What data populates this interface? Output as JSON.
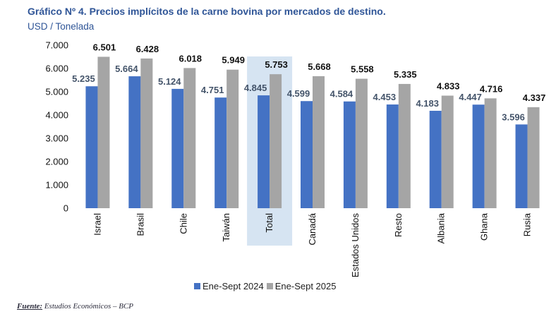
{
  "title": "Gráfico Nº 4. Precios implícitos de la carne bovina por mercados de destino.",
  "subtitle": "USD / Tonelada",
  "source": {
    "label": "Fuente:",
    "text": " Estudios Económicos – BCP"
  },
  "colors": {
    "series1": "#4472C4",
    "series2": "#A5A5A5",
    "highlight": "#D6E4F2",
    "label1": "#44546A",
    "label2": "#111111",
    "title": "#2F5597"
  },
  "chart_data": {
    "type": "bar",
    "title": "Gráfico Nº 4. Precios implícitos de la carne bovina por mercados de destino.",
    "ylabel": "USD / Tonelada",
    "xlabel": "",
    "ylim": [
      0,
      7000
    ],
    "yticks": [
      0,
      1000,
      2000,
      3000,
      4000,
      5000,
      6000,
      7000
    ],
    "ytick_labels": [
      "0",
      "1.000",
      "2.000",
      "3.000",
      "4.000",
      "5.000",
      "6.000",
      "7.000"
    ],
    "grid": false,
    "legend_position": "bottom",
    "highlighted_category": "Total",
    "categories": [
      "Israel",
      "Brasil",
      "Chile",
      "Taiwán",
      "Total",
      "Canadá",
      "Estados Unidos",
      "Resto",
      "Albania",
      "Ghana",
      "Rusia"
    ],
    "series": [
      {
        "name": "Ene-Sept 2024",
        "values": [
          5235,
          5664,
          5124,
          4751,
          4845,
          4599,
          4584,
          4453,
          4183,
          4447,
          3596
        ],
        "labels": [
          "5.235",
          "5.664",
          "5.124",
          "4.751",
          "4.845",
          "4.599",
          "4.584",
          "4.453",
          "4.183",
          "4.447",
          "3.596"
        ]
      },
      {
        "name": "Ene-Sept 2025",
        "values": [
          6501,
          6428,
          6018,
          5949,
          5753,
          5668,
          5558,
          5335,
          4833,
          4716,
          4337
        ],
        "labels": [
          "6.501",
          "6.428",
          "6.018",
          "5.949",
          "5.753",
          "5.668",
          "5.558",
          "5.335",
          "4.833",
          "4.716",
          "4.337"
        ]
      }
    ]
  }
}
